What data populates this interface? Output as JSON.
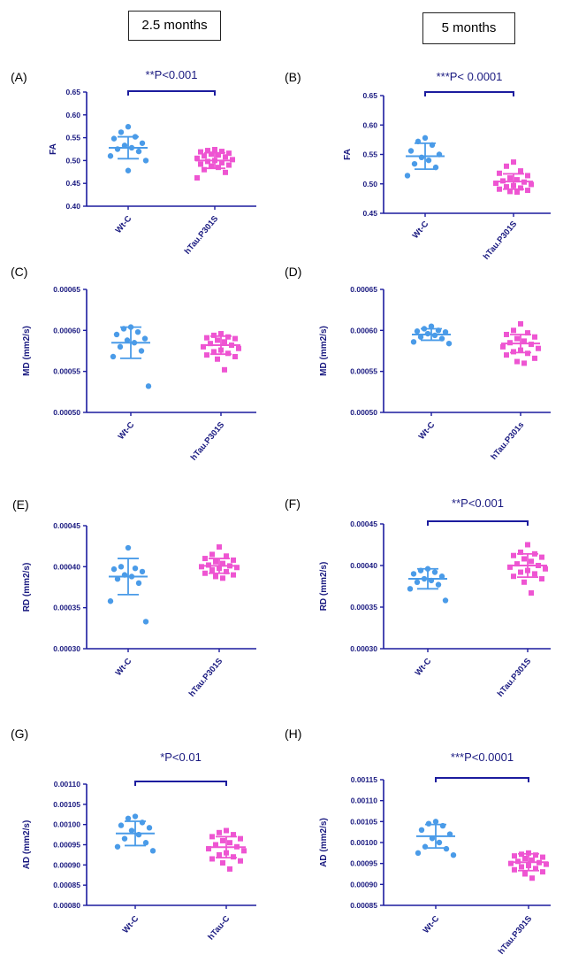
{
  "column_headers": [
    "2.5 months",
    "5 months"
  ],
  "colors": {
    "axis": "#1c1c9e",
    "wt": "#4a9be8",
    "tg": "#ee55d2",
    "sig": "#1c1c9e",
    "text": "#1a1a80"
  },
  "chart_data": [
    {
      "panel": "(A)",
      "type": "scatter",
      "ylabel": "FA",
      "ylim": [
        0.4,
        0.65
      ],
      "yticks": [
        "0.40",
        "0.45",
        "0.50",
        "0.55",
        "0.60",
        "0.65"
      ],
      "categories": [
        "Wt-C",
        "hTau.P301S"
      ],
      "significance": "**P<0.001",
      "series": [
        {
          "name": "Wt-C",
          "mean": 0.528,
          "sd": 0.024,
          "values": [
            0.574,
            0.562,
            0.552,
            0.548,
            0.538,
            0.533,
            0.528,
            0.525,
            0.52,
            0.51,
            0.5,
            0.478
          ]
        },
        {
          "name": "hTau.P301S",
          "mean": 0.5,
          "sd": 0.017,
          "values": [
            0.524,
            0.522,
            0.52,
            0.519,
            0.516,
            0.514,
            0.512,
            0.51,
            0.508,
            0.505,
            0.502,
            0.5,
            0.498,
            0.495,
            0.492,
            0.49,
            0.488,
            0.485,
            0.48,
            0.474,
            0.462
          ]
        }
      ]
    },
    {
      "panel": "(B)",
      "type": "scatter",
      "ylabel": "FA",
      "ylim": [
        0.45,
        0.65
      ],
      "yticks": [
        "0.45",
        "0.50",
        "0.55",
        "0.60",
        "0.65"
      ],
      "categories": [
        "Wt-C",
        "hTau.P301S"
      ],
      "significance": "***P< 0.0001",
      "series": [
        {
          "name": "Wt-C",
          "mean": 0.547,
          "sd": 0.022,
          "values": [
            0.578,
            0.572,
            0.566,
            0.556,
            0.55,
            0.545,
            0.54,
            0.534,
            0.528,
            0.514
          ]
        },
        {
          "name": "hTau.P301S",
          "mean": 0.504,
          "sd": 0.013,
          "values": [
            0.537,
            0.53,
            0.522,
            0.518,
            0.514,
            0.51,
            0.507,
            0.505,
            0.503,
            0.501,
            0.499,
            0.497,
            0.495,
            0.493,
            0.491,
            0.489,
            0.487,
            0.486
          ]
        }
      ]
    },
    {
      "panel": "(C)",
      "type": "scatter",
      "ylabel": "MD (mm2/s)",
      "ylim": [
        0.0005,
        0.00065
      ],
      "yticks": [
        "0.00050",
        "0.00055",
        "0.00060",
        "0.00065"
      ],
      "categories": [
        "Wt-C",
        "hTau.P301S"
      ],
      "significance": "",
      "series": [
        {
          "name": "Wt-C",
          "mean": 0.000585,
          "sd": 1.9e-05,
          "values": [
            0.000604,
            0.000602,
            0.000598,
            0.000595,
            0.00059,
            0.000588,
            0.000585,
            0.00058,
            0.000575,
            0.000568,
            0.000532
          ]
        },
        {
          "name": "hTau.P301S",
          "mean": 0.000582,
          "sd": 1.1e-05,
          "values": [
            0.000596,
            0.000594,
            0.000592,
            0.000591,
            0.00059,
            0.000588,
            0.000586,
            0.000584,
            0.000582,
            0.00058,
            0.000578,
            0.000576,
            0.000574,
            0.000572,
            0.00057,
            0.000568,
            0.000565,
            0.000552
          ]
        }
      ]
    },
    {
      "panel": "(D)",
      "type": "scatter",
      "ylabel": "MD (mm2/s)",
      "ylim": [
        0.0005,
        0.00065
      ],
      "yticks": [
        "0.00050",
        "0.00055",
        "0.00060",
        "0.00065"
      ],
      "categories": [
        "Wt-C",
        "hTau.P301s"
      ],
      "significance": "",
      "series": [
        {
          "name": "Wt-C",
          "mean": 0.000595,
          "sd": 7e-06,
          "values": [
            0.000605,
            0.000602,
            0.0006,
            0.000599,
            0.000598,
            0.000596,
            0.000594,
            0.000592,
            0.00059,
            0.000586,
            0.000584
          ]
        },
        {
          "name": "hTau.P301s",
          "mean": 0.000584,
          "sd": 1.1e-05,
          "values": [
            0.000608,
            0.0006,
            0.000597,
            0.000595,
            0.000592,
            0.00059,
            0.000587,
            0.000585,
            0.000583,
            0.00058,
            0.000578,
            0.000576,
            0.000574,
            0.000572,
            0.00057,
            0.000566,
            0.000562,
            0.00056
          ]
        }
      ]
    },
    {
      "panel": "(E)",
      "type": "scatter",
      "ylabel": "RD (mm2/s)",
      "ylim": [
        0.0003,
        0.00045
      ],
      "yticks": [
        "0.00030",
        "0.00035",
        "0.00040",
        "0.00045"
      ],
      "categories": [
        "Wt-C",
        "hTau.P301S"
      ],
      "significance": "",
      "series": [
        {
          "name": "Wt-C",
          "mean": 0.000388,
          "sd": 2.2e-05,
          "values": [
            0.000423,
            0.0004,
            0.000398,
            0.000397,
            0.000394,
            0.00039,
            0.000388,
            0.000385,
            0.00038,
            0.000358,
            0.000333
          ]
        },
        {
          "name": "hTau.P301S",
          "mean": 0.000401,
          "sd": 9e-06,
          "values": [
            0.000424,
            0.000415,
            0.000413,
            0.00041,
            0.000408,
            0.000406,
            0.000404,
            0.000402,
            0.000401,
            0.0004,
            0.000399,
            0.000398,
            0.000396,
            0.000394,
            0.000392,
            0.00039,
            0.000388,
            0.000386
          ]
        }
      ]
    },
    {
      "panel": "(F)",
      "type": "scatter",
      "ylabel": "RD (mm2/s)",
      "ylim": [
        0.0003,
        0.00045
      ],
      "yticks": [
        "0.00030",
        "0.00035",
        "0.00040",
        "0.00045"
      ],
      "categories": [
        "Wt-C",
        "hTau.P301S"
      ],
      "significance": "**P<0.001",
      "series": [
        {
          "name": "Wt-C",
          "mean": 0.000384,
          "sd": 1.2e-05,
          "values": [
            0.000396,
            0.000394,
            0.000392,
            0.00039,
            0.000387,
            0.000384,
            0.000382,
            0.00038,
            0.000377,
            0.000372,
            0.000358
          ]
        },
        {
          "name": "hTau.P301S",
          "mean": 0.0004,
          "sd": 1.4e-05,
          "values": [
            0.000425,
            0.000416,
            0.000414,
            0.000412,
            0.00041,
            0.000408,
            0.000405,
            0.000402,
            0.0004,
            0.000398,
            0.000396,
            0.000394,
            0.000392,
            0.00039,
            0.000387,
            0.000384,
            0.00038,
            0.000367
          ]
        }
      ]
    },
    {
      "panel": "(G)",
      "type": "scatter",
      "ylabel": "AD (mm2/s)",
      "ylim": [
        0.0008,
        0.0011
      ],
      "yticks": [
        "0.00080",
        "0.00085",
        "0.00090",
        "0.00095",
        "0.00100",
        "0.00105",
        "0.00110"
      ],
      "categories": [
        "Wt-C",
        "hTau-C"
      ],
      "significance": "*P<0.01",
      "series": [
        {
          "name": "Wt-C",
          "mean": 0.000978,
          "sd": 3e-05,
          "values": [
            0.00102,
            0.001015,
            0.001005,
            0.000998,
            0.000992,
            0.000985,
            0.000975,
            0.000965,
            0.000955,
            0.000945,
            0.000935
          ]
        },
        {
          "name": "hTau-C",
          "mean": 0.000944,
          "sd": 2.6e-05,
          "values": [
            0.000985,
            0.00098,
            0.000975,
            0.00097,
            0.000965,
            0.00096,
            0.000955,
            0.00095,
            0.000945,
            0.00094,
            0.000935,
            0.00093,
            0.000925,
            0.00092,
            0.000915,
            0.00091,
            0.000905,
            0.00089
          ]
        }
      ]
    },
    {
      "panel": "(H)",
      "type": "scatter",
      "ylabel": "AD (mm2/s)",
      "ylim": [
        0.00085,
        0.00115
      ],
      "yticks": [
        "0.00085",
        "0.00090",
        "0.00095",
        "0.00100",
        "0.00105",
        "0.00110",
        "0.00115"
      ],
      "categories": [
        "Wt-C",
        "hTau.P301S"
      ],
      "significance": "***P<0.0001",
      "series": [
        {
          "name": "Wt-C",
          "mean": 0.001015,
          "sd": 2.8e-05,
          "values": [
            0.00105,
            0.001045,
            0.00104,
            0.00103,
            0.00102,
            0.00101,
            0.001,
            0.00099,
            0.000985,
            0.000975,
            0.00097
          ]
        },
        {
          "name": "hTau.P301S",
          "mean": 0.000953,
          "sd": 2e-05,
          "values": [
            0.000975,
            0.000972,
            0.00097,
            0.000968,
            0.000965,
            0.000962,
            0.000958,
            0.000955,
            0.000952,
            0.00095,
            0.000948,
            0.000945,
            0.000942,
            0.000938,
            0.000935,
            0.00093,
            0.000925,
            0.000915
          ]
        }
      ]
    }
  ]
}
